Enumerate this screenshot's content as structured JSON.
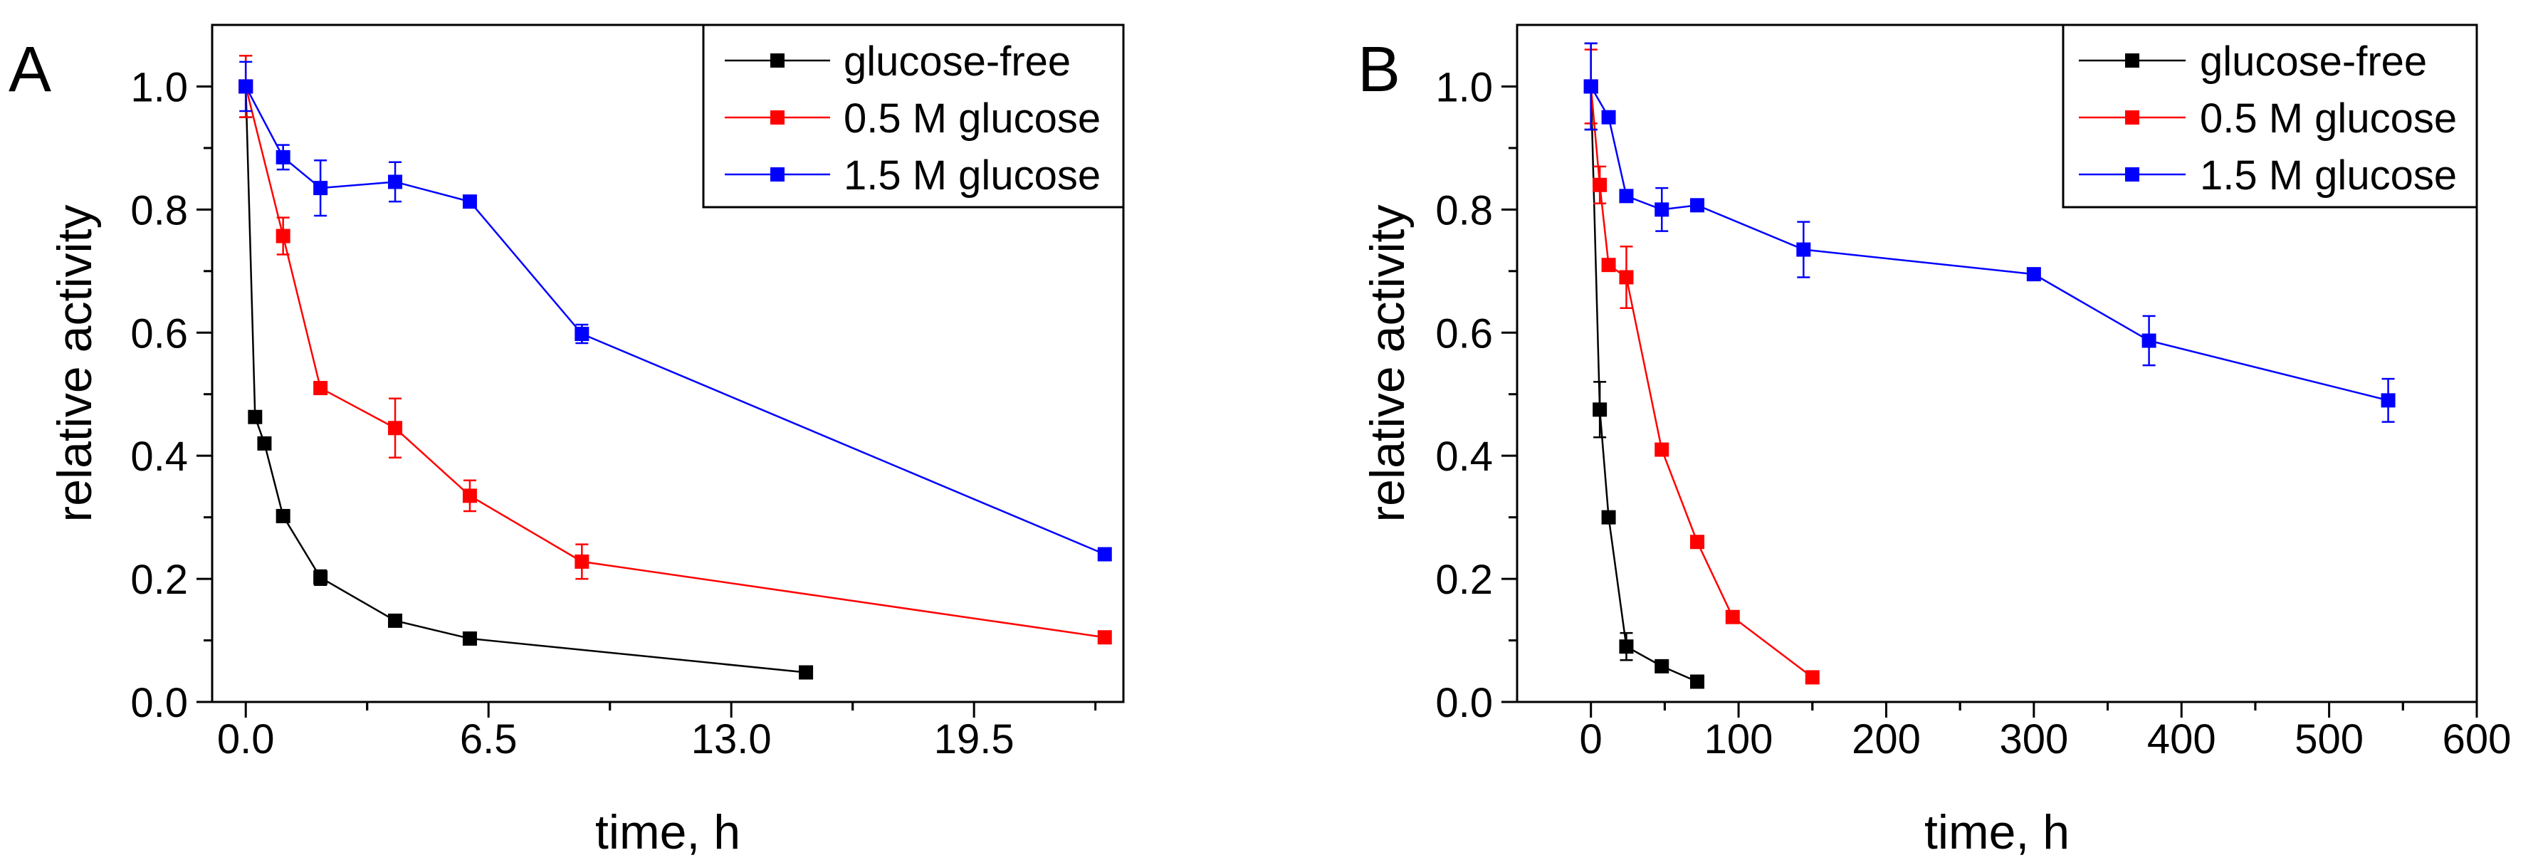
{
  "chart_data": [
    {
      "type": "line",
      "panel_label": "A",
      "xlabel": "time, h",
      "ylabel": "relative activity",
      "xlim": [
        -0.9,
        23.5
      ],
      "ylim": [
        0,
        1.1
      ],
      "xticks": [
        0,
        6.5,
        13,
        19.5
      ],
      "xtick_labels": [
        "0.0",
        "6.5",
        "13.0",
        "19.5"
      ],
      "yticks": [
        0,
        0.2,
        0.4,
        0.6,
        0.8,
        1.0
      ],
      "ytick_labels": [
        "0.0",
        "0.2",
        "0.4",
        "0.6",
        "0.8",
        "1.0"
      ],
      "grid": false,
      "legend_position": "top-right",
      "series": [
        {
          "name": "glucose-free",
          "color": "#000000",
          "x": [
            0,
            0.25,
            0.5,
            1,
            2,
            4,
            6,
            15
          ],
          "y": [
            1.0,
            0.463,
            0.42,
            0.302,
            0.202,
            0.132,
            0.103,
            0.048
          ],
          "err": [
            0.05,
            0.005,
            0.005,
            0.008,
            0.012,
            0.005,
            0.005,
            0.004
          ]
        },
        {
          "name": "0.5 M glucose",
          "color": "#ff0000",
          "x": [
            0,
            1,
            2,
            4,
            6,
            9,
            23
          ],
          "y": [
            1.0,
            0.757,
            0.51,
            0.445,
            0.335,
            0.228,
            0.105
          ],
          "err": [
            0.05,
            0.03,
            0.008,
            0.048,
            0.025,
            0.028,
            0.004
          ]
        },
        {
          "name": "1.5 M glucose",
          "color": "#0000ff",
          "x": [
            0,
            1,
            2,
            4,
            6,
            9,
            23
          ],
          "y": [
            1.0,
            0.885,
            0.835,
            0.845,
            0.813,
            0.598,
            0.24
          ],
          "err": [
            0.04,
            0.02,
            0.045,
            0.032,
            0.005,
            0.015,
            0.005
          ]
        }
      ]
    },
    {
      "type": "line",
      "panel_label": "B",
      "xlabel": "time, h",
      "ylabel": "relative activity",
      "xlim": [
        -50,
        600
      ],
      "ylim": [
        0,
        1.1
      ],
      "xticks": [
        0,
        100,
        200,
        300,
        400,
        500,
        600
      ],
      "xtick_labels": [
        "0",
        "100",
        "200",
        "300",
        "400",
        "500",
        "600"
      ],
      "yticks": [
        0,
        0.2,
        0.4,
        0.6,
        0.8,
        1.0
      ],
      "ytick_labels": [
        "0.0",
        "0.2",
        "0.4",
        "0.6",
        "0.8",
        "1.0"
      ],
      "grid": false,
      "legend_position": "top-right",
      "series": [
        {
          "name": "glucose-free",
          "color": "#000000",
          "x": [
            0,
            6,
            12,
            24,
            48,
            72
          ],
          "y": [
            1.0,
            0.475,
            0.3,
            0.09,
            0.058,
            0.033
          ],
          "err": [
            0.07,
            0.045,
            0.008,
            0.022,
            0.005,
            0.004
          ]
        },
        {
          "name": "0.5 M glucose",
          "color": "#ff0000",
          "x": [
            0,
            6,
            12,
            24,
            48,
            72,
            96,
            150
          ],
          "y": [
            1.0,
            0.84,
            0.71,
            0.69,
            0.41,
            0.26,
            0.138,
            0.04
          ],
          "err": [
            0.06,
            0.03,
            0.008,
            0.05,
            0.008,
            0.005,
            0.004,
            0.004
          ]
        },
        {
          "name": "1.5 M glucose",
          "color": "#0000ff",
          "x": [
            0,
            12,
            24,
            48,
            72,
            144,
            300,
            378,
            540
          ],
          "y": [
            1.0,
            0.95,
            0.822,
            0.8,
            0.807,
            0.735,
            0.695,
            0.587,
            0.49
          ],
          "err": [
            0.07,
            0.005,
            0.005,
            0.035,
            0.005,
            0.045,
            0.008,
            0.04,
            0.035
          ]
        }
      ]
    }
  ]
}
